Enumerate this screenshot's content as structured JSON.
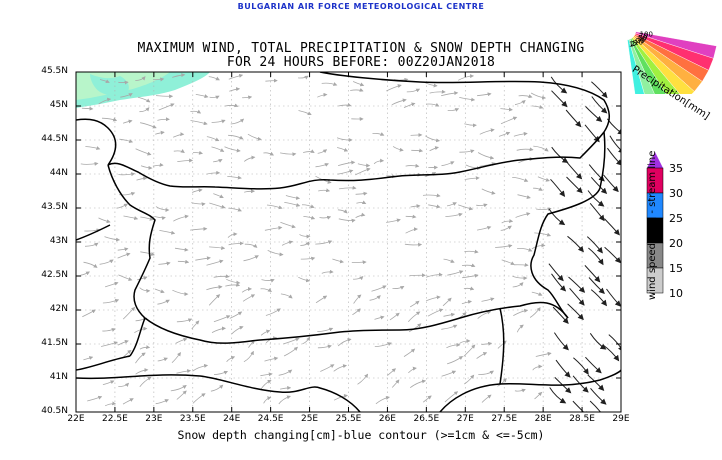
{
  "header": {
    "organization": "BULGARIAN AIR FORCE METEOROLOGICAL CENTRE",
    "title_line1": "MAXIMUM WIND, TOTAL PRECIPITATION & SNOW DEPTH CHANGING",
    "title_line2": "FOR 24 HOURS BEFORE: 00Z20JAN2018"
  },
  "map": {
    "latitude_labels": [
      "45.5N",
      "45N",
      "44.5N",
      "44N",
      "43.5N",
      "43N",
      "42.5N",
      "42N",
      "41.5N",
      "41N",
      "40.5N"
    ],
    "longitude_labels": [
      "22E",
      "22.5E",
      "23E",
      "23.5E",
      "24E",
      "24.5E",
      "25E",
      "25.5E",
      "26E",
      "26.5E",
      "27E",
      "27.5E",
      "28E",
      "28.5E",
      "29E"
    ],
    "colors": {
      "border_line": "#000000",
      "wind_arrow_light": "#a8a8a8",
      "wind_arrow_dark": "#202020",
      "snow_contour": "#1d33c9",
      "precip_fill": "#8ff0d8",
      "precip_fill_light": "#c9f7c4"
    }
  },
  "precipitation_legend": {
    "title": "Precipitation[mm]",
    "levels": [
      "100",
      "70",
      "50",
      "30",
      "20",
      "10",
      "5",
      "2",
      "1"
    ],
    "colors": [
      "#e040c0",
      "#ff3070",
      "#ff7040",
      "#ffb040",
      "#ffe040",
      "#a0f040",
      "#60e060",
      "#90f0a0",
      "#40f0e0"
    ]
  },
  "wind_legend": {
    "title": "wind speed[m/s] - stream line",
    "levels": [
      "35",
      "30",
      "25",
      "20",
      "15",
      "10"
    ],
    "colors": [
      "#a030e0",
      "#e00060",
      "#2088ff",
      "#000000",
      "#888888",
      "#cccccc"
    ]
  },
  "footer": {
    "note": "Snow depth changing[cm]-blue contour (>=1cm & <=-5cm)"
  }
}
